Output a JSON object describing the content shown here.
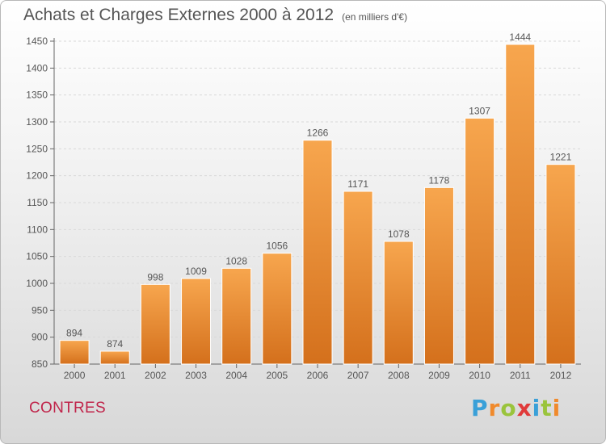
{
  "title": "Achats et Charges Externes 2000 à 2012",
  "subtitle": "(en milliers d'€)",
  "city": "CONTRES",
  "logo": {
    "text": "Proxiti",
    "letters": [
      "P",
      "r",
      "o",
      "x",
      "i",
      "t",
      "i"
    ],
    "colors": [
      "#3aa0d8",
      "#f08a2c",
      "#9ac43c",
      "#e03a3a",
      "#3aa0d8",
      "#9ac43c",
      "#f08a2c"
    ]
  },
  "colors": {
    "bar_light": "#f7a64e",
    "bar_dark": "#d4701c",
    "grid": "#d9d9d9",
    "text": "#555555"
  },
  "chart_data": {
    "type": "bar",
    "categories": [
      "2000",
      "2001",
      "2002",
      "2003",
      "2004",
      "2005",
      "2006",
      "2007",
      "2008",
      "2009",
      "2010",
      "2011",
      "2012"
    ],
    "values": [
      894,
      874,
      998,
      1009,
      1028,
      1056,
      1266,
      1171,
      1078,
      1178,
      1307,
      1444,
      1221
    ],
    "ylim": [
      850,
      1450
    ],
    "yticks": [
      850,
      900,
      950,
      1000,
      1050,
      1100,
      1150,
      1200,
      1250,
      1300,
      1350,
      1400,
      1450
    ],
    "grid": "horizontal dashed",
    "legend": "none"
  }
}
